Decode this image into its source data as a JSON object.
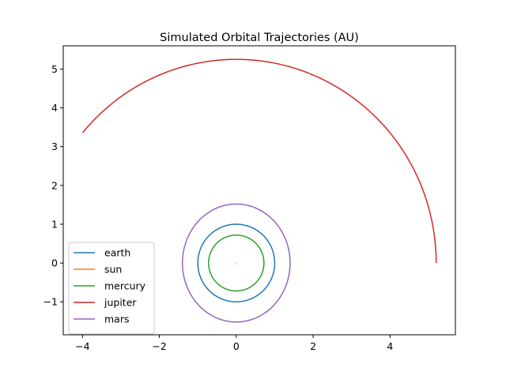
{
  "chart_data": {
    "type": "line",
    "title": "Simulated Orbital Trajectories (AU)",
    "xlabel": "",
    "ylabel": "",
    "xlim": [
      -4.5,
      5.7
    ],
    "ylim": [
      -1.85,
      5.6
    ],
    "xticks": [
      -4,
      -2,
      0,
      2,
      4
    ],
    "yticks": [
      -1,
      0,
      1,
      2,
      3,
      4,
      5
    ],
    "xtick_labels": [
      "−4",
      "−2",
      "0",
      "2",
      "4"
    ],
    "ytick_labels": [
      "−1",
      "0",
      "1",
      "2",
      "3",
      "4",
      "5"
    ],
    "grid": false,
    "legend_position": "lower-left",
    "series": [
      {
        "name": "earth",
        "color": "#1f77b4",
        "shape": "ellipse",
        "center": [
          0,
          0
        ],
        "rx": 1.0,
        "ry": 1.0,
        "start_deg": 0,
        "end_deg": 360
      },
      {
        "name": "sun",
        "color": "#ff7f0e",
        "x": [
          0.0,
          0.005,
          0.0
        ],
        "y": [
          0.0,
          0.01,
          0.02
        ]
      },
      {
        "name": "mercury",
        "color": "#2ca02c",
        "shape": "ellipse",
        "center": [
          0,
          0
        ],
        "rx": 0.72,
        "ry": 0.72,
        "start_deg": 0,
        "end_deg": 360
      },
      {
        "name": "jupiter",
        "color": "#d62728",
        "shape": "ellipse",
        "center": [
          0,
          0
        ],
        "rx": 5.2,
        "ry": 5.25,
        "start_deg": 0,
        "end_deg": 140.2
      },
      {
        "name": "mars",
        "color": "#9467bd",
        "shape": "ellipse",
        "center": [
          0,
          0
        ],
        "rx": 1.4,
        "ry": 1.52,
        "start_deg": 0,
        "end_deg": 360
      }
    ]
  }
}
